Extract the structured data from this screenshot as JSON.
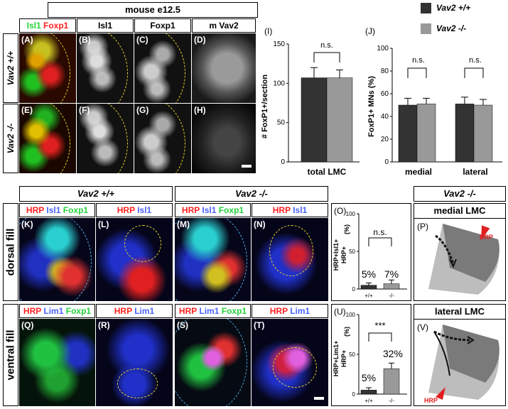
{
  "header": {
    "stage": "mouse e12.5",
    "channels": [
      "Isl1",
      "Foxp1",
      "Isl1",
      "Foxp1",
      "m Vav2"
    ]
  },
  "rows_top": [
    "Vav2 +/+",
    "Vav2 -/-"
  ],
  "panel_letters_top": [
    "(A)",
    "(B)",
    "(C)",
    "(D)",
    "(E)",
    "(F)",
    "(G)",
    "(H)"
  ],
  "legend": {
    "wt": "Vav2 +/+",
    "ko": "Vav2 -/-",
    "wt_color": "#333333",
    "ko_color": "#999999"
  },
  "chart_I": {
    "label": "(I)",
    "ylabel": "# FoxP1+/section",
    "xlabel": "total LMC",
    "significance": "n.s.",
    "yticks": [
      "0",
      "50",
      "100",
      "150"
    ]
  },
  "chart_J": {
    "label": "(J)",
    "ylabel": "FoxP1+ MNs (%)",
    "categories": [
      "medial",
      "lateral"
    ],
    "significance": [
      "n.s.",
      "n.s."
    ],
    "yticks": [
      "0",
      "20",
      "40",
      "60",
      "80",
      "100"
    ]
  },
  "chart_data": [
    {
      "type": "bar",
      "categories": [
        "total LMC"
      ],
      "series": [
        {
          "name": "Vav2 +/+",
          "values": [
            107
          ],
          "errors": [
            13
          ]
        },
        {
          "name": "Vav2 -/-",
          "values": [
            107
          ],
          "errors": [
            10
          ]
        }
      ],
      "ylabel": "# FoxP1+/section",
      "ylim": [
        0,
        150
      ]
    },
    {
      "type": "bar",
      "categories": [
        "medial",
        "lateral"
      ],
      "series": [
        {
          "name": "Vav2 +/+",
          "values": [
            50,
            51
          ],
          "errors": [
            6,
            6
          ]
        },
        {
          "name": "Vav2 -/-",
          "values": [
            51,
            50
          ],
          "errors": [
            5,
            5
          ]
        }
      ],
      "ylabel": "FoxP1+ MNs (%)",
      "ylim": [
        0,
        100
      ]
    },
    {
      "type": "bar",
      "categories": [
        "+/+",
        "-/-"
      ],
      "values": [
        5,
        7
      ],
      "errors": [
        3,
        5
      ],
      "ylabel": "HRP+Isl1+ / HRP+ (%)",
      "ylim": [
        0,
        100
      ]
    },
    {
      "type": "bar",
      "categories": [
        "+/+",
        "-/-"
      ],
      "values": [
        5,
        32
      ],
      "errors": [
        3,
        7
      ],
      "ylabel": "HRP+Lim1+ / HRP+ (%)",
      "ylim": [
        0,
        100
      ]
    }
  ],
  "bottom": {
    "group_wt": "Vav2 +/+",
    "group_ko": "Vav2 -/-",
    "group_schem": "Vav2 -/-",
    "rows": [
      "dorsal fill",
      "ventral fill"
    ],
    "letters_dorsal": [
      "(K)",
      "(L)",
      "(M)",
      "(N)"
    ],
    "letters_ventral": [
      "(Q)",
      "(R)",
      "(S)",
      "(T)"
    ]
  },
  "chart_O": {
    "label": "(O)",
    "significance": "n.s.",
    "pct": [
      "5%",
      "7%"
    ],
    "xticks": [
      "+/+",
      "-/-"
    ],
    "yticks": [
      "0",
      "50",
      "100"
    ],
    "ylabel_num": "HRP+Isl1+",
    "ylabel_den": "HRP+",
    "ylabel_unit": "(%)"
  },
  "chart_U": {
    "label": "(U)",
    "significance": "***",
    "pct": [
      "5%",
      "32%"
    ],
    "xticks": [
      "+/+",
      "-/-"
    ],
    "yticks": [
      "0",
      "50",
      "100"
    ],
    "ylabel_num": "HRP+Lim1+",
    "ylabel_den": "HRP+",
    "ylabel_unit": "(%)"
  },
  "schematic_P": {
    "label": "(P)",
    "title": "medial LMC",
    "hrp": "HRP"
  },
  "schematic_V": {
    "label": "(V)",
    "title": "lateral LMC",
    "hrp": "HRP"
  }
}
